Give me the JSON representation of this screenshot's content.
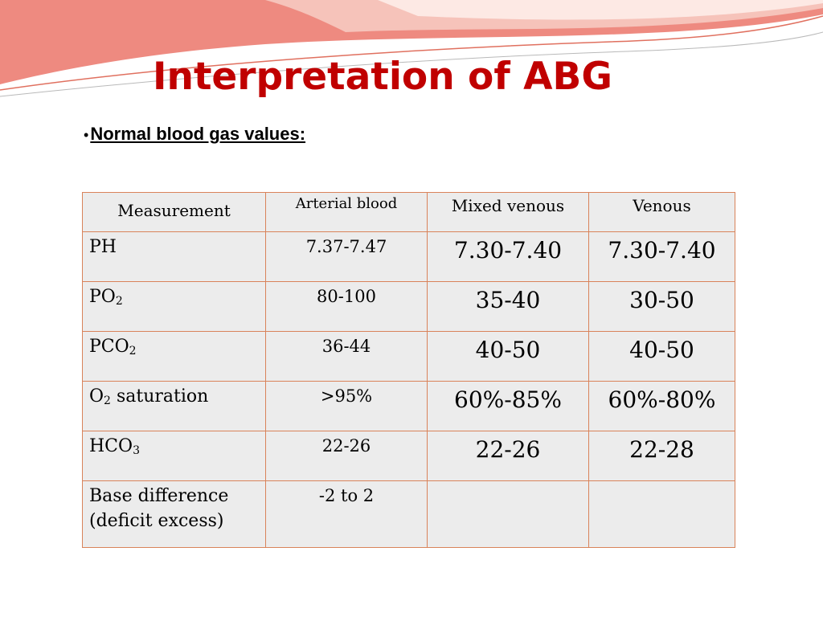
{
  "slide": {
    "title": "Interpretation of ABG",
    "subtitle": "Normal blood gas values:",
    "bullet": "•"
  },
  "colors": {
    "title": "#c00000",
    "border": "#d9835a",
    "cell_background": "#ececec",
    "decor_swoosh": "#ee8a80"
  },
  "table": {
    "headers": [
      "Measurement",
      "Arterial blood",
      "Mixed venous",
      "Venous"
    ],
    "rows": [
      {
        "measurement": "PH",
        "arterial": "7.37-7.47",
        "mixed_venous": "7.30-7.40",
        "venous": "7.30-7.40"
      },
      {
        "measurement": "PO",
        "measurement_sub": "2",
        "arterial": "80-100",
        "mixed_venous": "35-40",
        "venous": "30-50"
      },
      {
        "measurement": "PCO",
        "measurement_sub": "2",
        "arterial": "36-44",
        "mixed_venous": "40-50",
        "venous": "40-50"
      },
      {
        "measurement_prefix": "O",
        "measurement_sub": "2",
        "measurement_suffix": " saturation",
        "arterial": ">95%",
        "mixed_venous": "60%-85%",
        "venous": "60%-80%"
      },
      {
        "measurement": "HCO",
        "measurement_sub": "3",
        "arterial": "22-26",
        "mixed_venous": "22-26",
        "venous": "22-28"
      },
      {
        "measurement_line1": "Base difference",
        "measurement_line2": "(deficit excess)",
        "arterial": "-2 to 2",
        "mixed_venous": "",
        "venous": ""
      }
    ]
  }
}
